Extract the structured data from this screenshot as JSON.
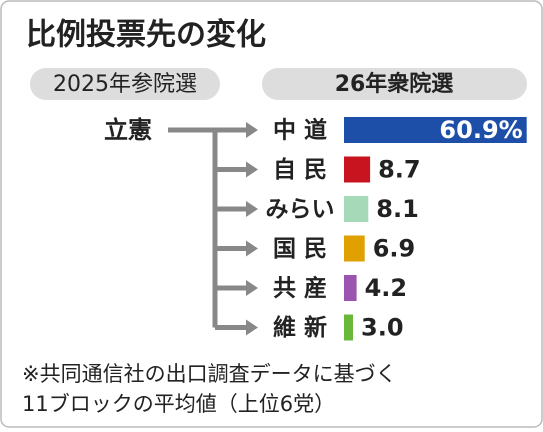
{
  "chart_data": {
    "type": "bar",
    "orientation": "horizontal",
    "title": "比例投票先の変化",
    "from_label": "2025年参院選",
    "to_label": "26年衆院選",
    "source": "立憲",
    "categories": [
      "中 道",
      "自 民",
      "みらい",
      "国 民",
      "共 産",
      "維 新"
    ],
    "values": [
      60.9,
      8.7,
      8.1,
      6.9,
      4.2,
      3.0
    ],
    "value_labels": [
      "60.9%",
      "8.7",
      "8.1",
      "6.9",
      "4.2",
      "3.0"
    ],
    "colors": [
      "#1e4fa8",
      "#c8141e",
      "#a5d9b8",
      "#e0a000",
      "#9b55b0",
      "#6ab83a"
    ],
    "notes": [
      "※共同通信社の出口調査データに基づく",
      "11ブロックの平均値（上位6党）"
    ]
  }
}
